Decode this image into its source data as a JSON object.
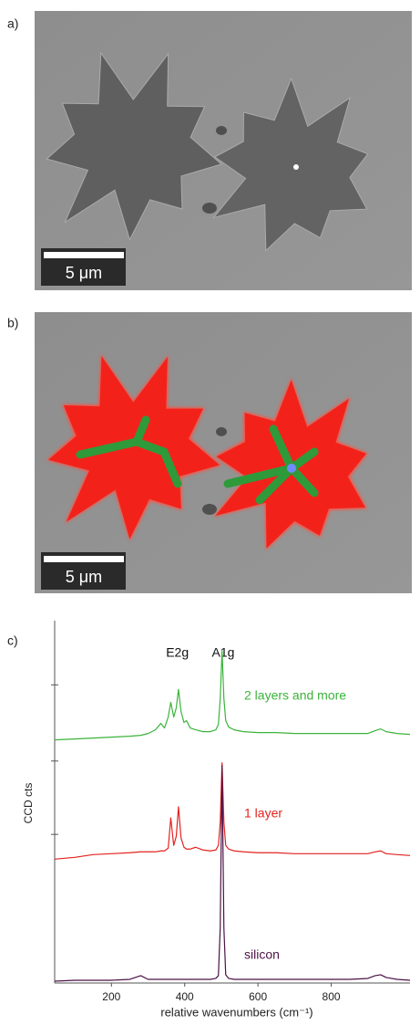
{
  "panels": [
    {
      "label": "a)",
      "scale_bar": "5 μm"
    },
    {
      "label": "b)",
      "scale_bar": "5 μm"
    },
    {
      "label": "c)"
    }
  ],
  "chart_data": {
    "type": "line",
    "xlabel": "relative wavenumbers (cm⁻¹)",
    "ylabel": "CCD cts",
    "xlim": [
      45,
      1015
    ],
    "xticks": [
      200,
      400,
      600,
      800
    ],
    "ylim": [
      0,
      395
    ],
    "yticks": [
      162,
      242,
      325
    ],
    "annotations": [
      {
        "text": "E2g",
        "x": 380
      },
      {
        "text": "A1g",
        "x": 505
      }
    ],
    "x": [
      45,
      100,
      150,
      200,
      250,
      280,
      300,
      320,
      335,
      345,
      355,
      362,
      370,
      377,
      383,
      390,
      398,
      405,
      415,
      430,
      450,
      470,
      485,
      492,
      497,
      502,
      507,
      512,
      520,
      535,
      560,
      600,
      650,
      700,
      750,
      800,
      850,
      900,
      920,
      935,
      950,
      980,
      1015
    ],
    "series": [
      {
        "name": "2 layers and more",
        "color": "#3bb43b",
        "values": [
          265,
          266,
          267,
          268,
          269,
          270,
          272,
          276,
          283,
          278,
          290,
          306,
          290,
          300,
          320,
          296,
          284,
          286,
          278,
          276,
          274,
          274,
          276,
          282,
          310,
          362,
          310,
          286,
          279,
          276,
          274,
          273,
          273,
          272,
          272,
          272,
          272,
          272,
          275,
          277,
          274,
          272,
          271
        ]
      },
      {
        "name": "1 layer",
        "color": "#e2231f",
        "values": [
          135,
          137,
          140,
          141,
          142,
          143,
          143,
          143,
          144,
          144,
          147,
          180,
          150,
          160,
          192,
          158,
          148,
          146,
          146,
          148,
          145,
          144,
          145,
          150,
          175,
          240,
          175,
          150,
          146,
          144,
          143,
          142,
          142,
          141,
          141,
          141,
          141,
          141,
          143,
          144,
          141,
          140,
          139
        ]
      },
      {
        "name": "silicon",
        "color": "#4b1246",
        "values": [
          2,
          3,
          3,
          3,
          4,
          8,
          4,
          4,
          4,
          4,
          4,
          4,
          4,
          4,
          4,
          4,
          4,
          4,
          4,
          4,
          4,
          4,
          5,
          8,
          60,
          237,
          60,
          9,
          5,
          4,
          4,
          4,
          4,
          4,
          4,
          4,
          4,
          5,
          8,
          9,
          6,
          4,
          3
        ]
      }
    ]
  }
}
